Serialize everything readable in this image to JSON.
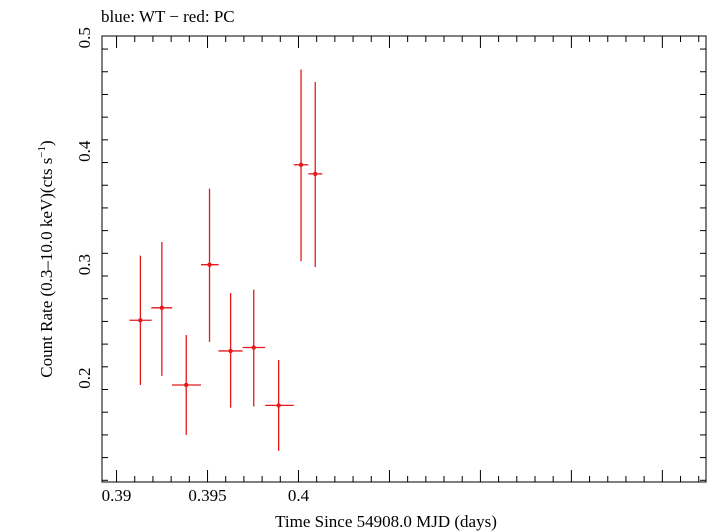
{
  "chart_data": {
    "type": "scatter",
    "title": "blue: WT − red: PC",
    "xlabel": "Time Since 54908.0 MJD (days)",
    "ylabel_main": "Count Rate (0.3–10.0 keV)(cts s",
    "ylabel_sup": "−1",
    "ylabel_end": ")",
    "xlim": [
      0.3892,
      0.4224
    ],
    "ylim": [
      0.1085,
      0.5015
    ],
    "x_ticks": [
      {
        "value": 0.39,
        "label": "0.39"
      },
      {
        "value": 0.395,
        "label": "0.395"
      },
      {
        "value": 0.4,
        "label": "0.4"
      }
    ],
    "y_ticks": [
      {
        "value": 0.2,
        "label": "0.2"
      },
      {
        "value": 0.3,
        "label": "0.3"
      },
      {
        "value": 0.4,
        "label": "0.4"
      },
      {
        "value": 0.5,
        "label": "0.5"
      }
    ],
    "grid": false,
    "series": [
      {
        "color": "#e41a1c",
        "points": [
          {
            "x": 0.39131,
            "xlo": 0.39071,
            "xhi": 0.39193,
            "y": 0.251,
            "ylo": 0.194,
            "yhi": 0.308
          },
          {
            "x": 0.39249,
            "xlo": 0.39191,
            "xhi": 0.39306,
            "y": 0.262,
            "ylo": 0.202,
            "yhi": 0.32
          },
          {
            "x": 0.39383,
            "xlo": 0.39305,
            "xhi": 0.39464,
            "y": 0.194,
            "ylo": 0.15,
            "yhi": 0.238
          },
          {
            "x": 0.39511,
            "xlo": 0.39464,
            "xhi": 0.39561,
            "y": 0.3,
            "ylo": 0.232,
            "yhi": 0.367
          },
          {
            "x": 0.39627,
            "xlo": 0.3956,
            "xhi": 0.39693,
            "y": 0.224,
            "ylo": 0.174,
            "yhi": 0.275
          },
          {
            "x": 0.39754,
            "xlo": 0.39693,
            "xhi": 0.39817,
            "y": 0.227,
            "ylo": 0.175,
            "yhi": 0.278
          },
          {
            "x": 0.39891,
            "xlo": 0.39817,
            "xhi": 0.39974,
            "y": 0.176,
            "ylo": 0.136,
            "yhi": 0.216
          },
          {
            "x": 0.40014,
            "xlo": 0.39974,
            "xhi": 0.40054,
            "y": 0.388,
            "ylo": 0.303,
            "yhi": 0.472
          },
          {
            "x": 0.40092,
            "xlo": 0.40054,
            "xhi": 0.40131,
            "y": 0.38,
            "ylo": 0.298,
            "yhi": 0.461
          }
        ]
      }
    ]
  }
}
